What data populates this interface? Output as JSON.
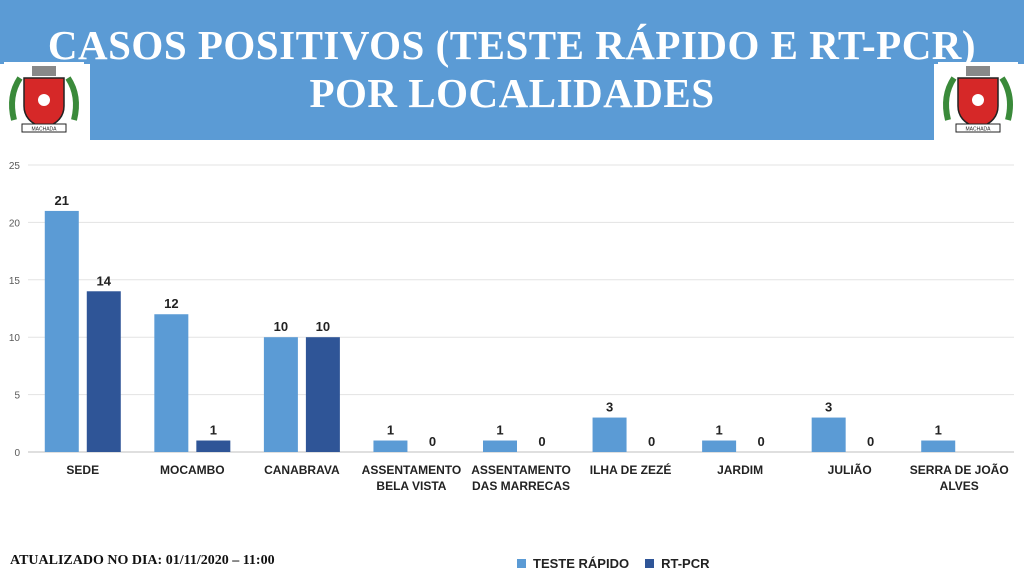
{
  "header": {
    "title_line1": "CASOS POSITIVOS (TESTE RÁPIDO E RT-PCR)",
    "title_line2": "POR LOCALIDADES",
    "seal_text": "MACHADA"
  },
  "footer": {
    "updated": "ATUALIZADO NO DIA: 01/11/2020 – 11:00"
  },
  "colors": {
    "header": "#5b9bd5",
    "teste_rapido": "#5b9bd5",
    "rt_pcr": "#2f5597"
  },
  "chart_data": {
    "type": "bar",
    "title": "CASOS POSITIVOS (TESTE RÁPIDO E RT-PCR) POR LOCALIDADES",
    "categories": [
      [
        "SEDE"
      ],
      [
        "MOCAMBO"
      ],
      [
        "CANABRAVA"
      ],
      [
        "ASSENTAMENTO",
        "BELA VISTA"
      ],
      [
        "ASSENTAMENTO",
        "DAS MARRECAS"
      ],
      [
        "ILHA DE ZEZÉ"
      ],
      [
        "JARDIM"
      ],
      [
        "JULIÃO"
      ],
      [
        "SERRA DE JOÃO",
        "ALVES"
      ]
    ],
    "series": [
      {
        "name": "TESTE RÁPIDO",
        "values": [
          21,
          12,
          10,
          1,
          1,
          3,
          1,
          3,
          1
        ]
      },
      {
        "name": "RT-PCR",
        "values": [
          14,
          1,
          10,
          0,
          0,
          0,
          0,
          0,
          null
        ]
      }
    ],
    "ylim": [
      0,
      25
    ],
    "yticks": [
      0,
      5,
      10,
      15,
      20,
      25
    ],
    "grid": true,
    "legend": "bottom"
  }
}
